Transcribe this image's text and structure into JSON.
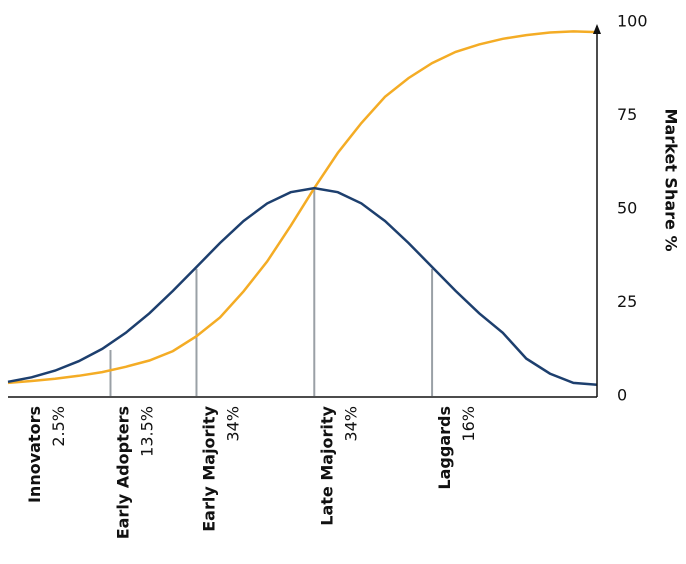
{
  "chart_data": {
    "type": "line",
    "ylabel": "Market Share %",
    "y_axis_side": "right",
    "ylim": [
      0,
      100
    ],
    "yticks": [
      0,
      25,
      50,
      75,
      100
    ],
    "xlim": [
      -2.6,
      2.4
    ],
    "x": [
      -2.6,
      -2.4,
      -2.2,
      -2.0,
      -1.8,
      -1.6,
      -1.4,
      -1.2,
      -1.0,
      -0.8,
      -0.6,
      -0.4,
      -0.2,
      0,
      0.2,
      0.4,
      0.6,
      0.8,
      1.0,
      1.2,
      1.4,
      1.6,
      1.8,
      2.0,
      2.2,
      2.4
    ],
    "series": [
      {
        "color": "#f4ac25",
        "values": [
          3.5,
          4,
          4.6,
          5.4,
          6.4,
          7.8,
          9.5,
          12,
          16,
          21,
          28,
          36,
          45.5,
          55.6,
          65,
          73,
          80,
          85,
          89,
          92,
          94,
          95.5,
          96.5,
          97.2,
          97.5,
          97.3
        ]
      },
      {
        "color": "#1d3f6e",
        "values": [
          3.8,
          5.0,
          6.8,
          9.3,
          12.6,
          16.9,
          22.1,
          28.1,
          34.5,
          40.9,
          46.8,
          51.5,
          54.5,
          55.6,
          54.5,
          51.5,
          46.8,
          40.9,
          34.5,
          28.1,
          22.1,
          16.9,
          10,
          6,
          3.5,
          3
        ]
      }
    ],
    "boundaries": {
      "color": "#9aa0a6",
      "x": [
        -1.73,
        -1,
        0,
        1
      ],
      "values": [
        12.3,
        34,
        55.6,
        34
      ]
    },
    "categories": [
      "Innovators",
      "Early Adopters",
      "Early Majority",
      "Late Majority",
      "Laggards"
    ],
    "values": [
      2.5,
      13.5,
      34,
      34,
      16
    ],
    "value_labels": [
      "2.5%",
      "13.5%",
      "34%",
      "34%",
      "16%"
    ]
  }
}
